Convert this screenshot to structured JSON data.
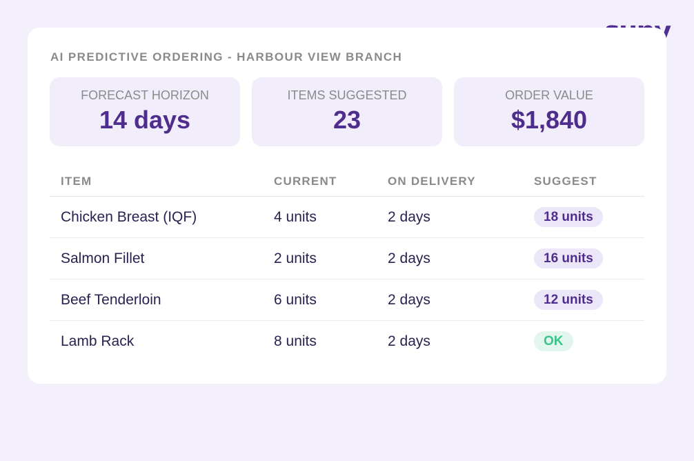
{
  "brand": {
    "logo_text": "supy",
    "color": "#4f2d94"
  },
  "card": {
    "title": "AI PREDICTIVE ORDERING - HARBOUR VIEW BRANCH"
  },
  "stats": [
    {
      "label": "FORECAST HORIZON",
      "value": "14 days"
    },
    {
      "label": "ITEMS SUGGESTED",
      "value": "23"
    },
    {
      "label": "ORDER VALUE",
      "value": "$1,840"
    }
  ],
  "table": {
    "headers": [
      "ITEM",
      "CURRENT",
      "ON DELIVERY",
      "SUGGEST"
    ],
    "rows": [
      {
        "item": "Chicken Breast (IQF)",
        "current": "4 units",
        "on_delivery": "2 days",
        "suggest": "18 units",
        "status": "order"
      },
      {
        "item": "Salmon Fillet",
        "current": "2 units",
        "on_delivery": "2 days",
        "suggest": "16 units",
        "status": "order"
      },
      {
        "item": "Beef Tenderloin",
        "current": "6 units",
        "on_delivery": "2 days",
        "suggest": "12 units",
        "status": "order"
      },
      {
        "item": "Lamb Rack",
        "current": "8 units",
        "on_delivery": "2 days",
        "suggest": "OK",
        "status": "ok"
      }
    ]
  },
  "colors": {
    "accent": "#4f2d8c",
    "ok_text": "#3cc48a",
    "ok_bg": "#e2f6ee",
    "suggest_bg": "#ece7f8",
    "page_bg": "#f3f0fb"
  }
}
